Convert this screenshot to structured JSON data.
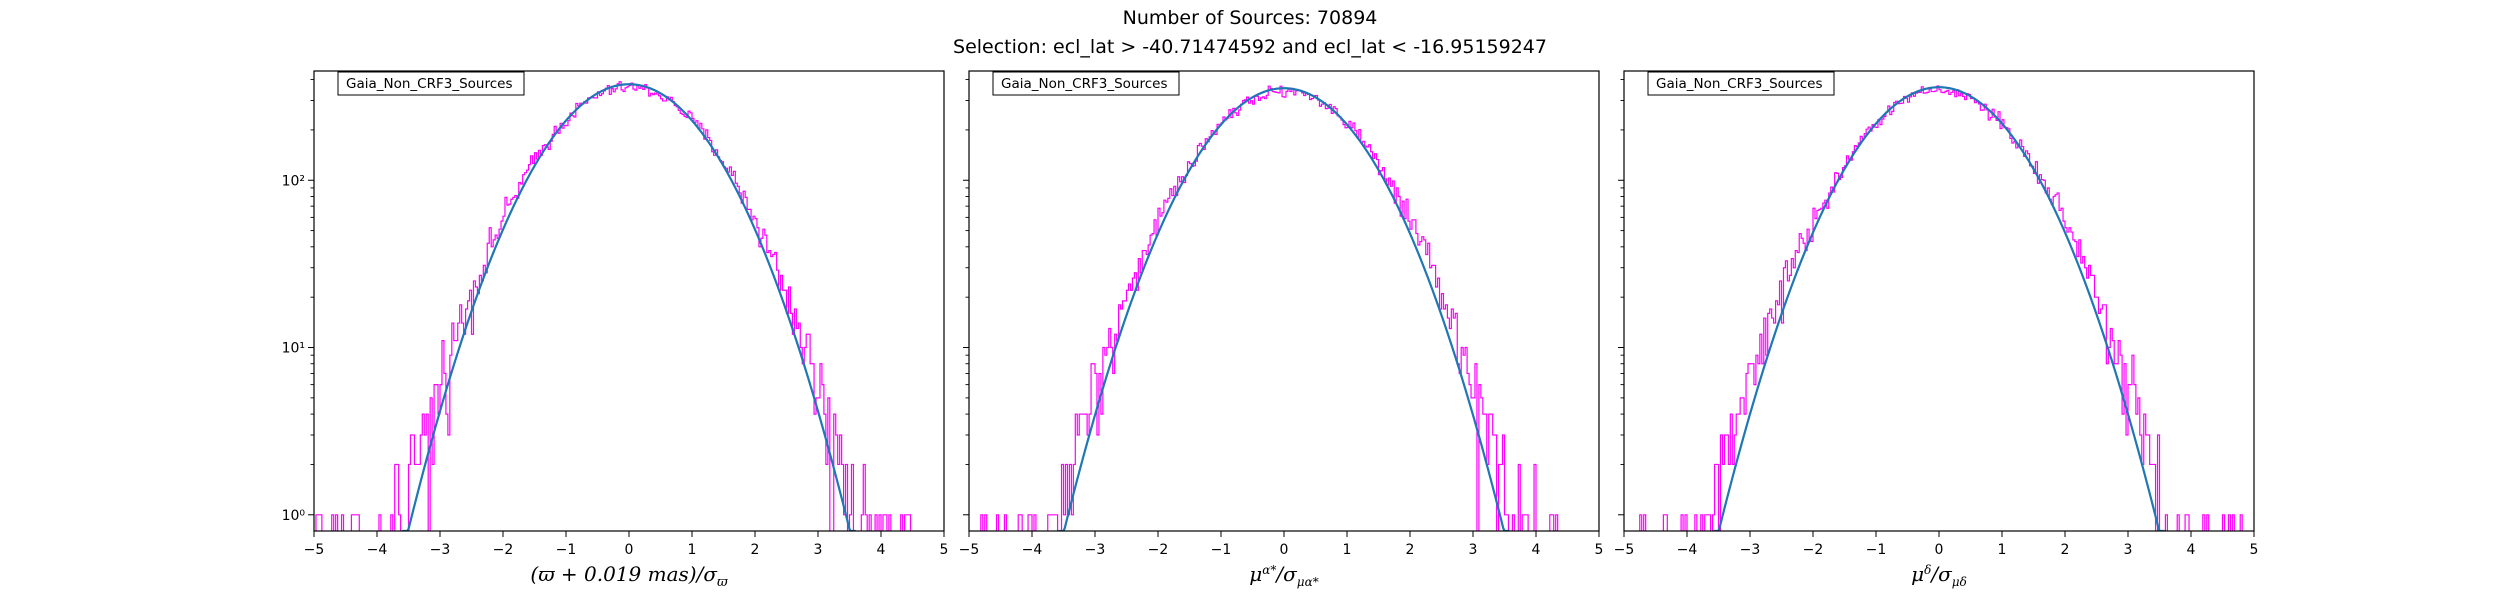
{
  "figure": {
    "title_line1": "Number of Sources: 70894",
    "title_line2": "Selection: ecl_lat > -40.71474592 and ecl_lat < -16.95159247"
  },
  "colors": {
    "histogram": "#ff00ff",
    "fit": "#1f77b4"
  },
  "chart_data": [
    {
      "type": "line",
      "legend": "Gaia_Non_CRF3_Sources",
      "xlabel_parts": [
        "(ϖ + 0.019 mas)/σ",
        "ϖ"
      ],
      "ylabel": "",
      "xlim": [
        -5,
        5
      ],
      "ylim": [
        0.8,
        450
      ],
      "yscale": "log",
      "x_ticks": [
        -5,
        -4,
        -3,
        -2,
        -1,
        0,
        1,
        2,
        3,
        4,
        5
      ],
      "y_ticks": [
        1,
        10,
        100
      ],
      "y_tick_labels": [
        "10⁰",
        "10¹",
        "10²"
      ],
      "grid": false,
      "series": [
        {
          "kind": "histogram-step",
          "x_range": [
            -5,
            4.5
          ],
          "peak": 360,
          "sigma": 1.05,
          "min_count": 1
        },
        {
          "kind": "gaussian-fit",
          "amplitude": 375,
          "mean": 0,
          "sigma": 1.0
        }
      ]
    },
    {
      "type": "line",
      "legend": "Gaia_Non_CRF3_Sources",
      "xlabel_parts": [
        "μ",
        "α*",
        "/σ",
        "μα*"
      ],
      "ylabel": "",
      "xlim": [
        -5,
        5
      ],
      "ylim": [
        0.8,
        450
      ],
      "yscale": "log",
      "x_ticks": [
        -5,
        -4,
        -3,
        -2,
        -1,
        0,
        1,
        2,
        3,
        4,
        5
      ],
      "y_ticks": [
        1,
        10,
        100
      ],
      "y_tick_labels": [
        "",
        "",
        ""
      ],
      "grid": false,
      "series": [
        {
          "kind": "histogram-step",
          "x_range": [
            -4.8,
            4.5
          ],
          "peak": 345,
          "sigma": 1.05,
          "min_count": 1
        },
        {
          "kind": "gaussian-fit",
          "amplitude": 355,
          "mean": 0,
          "sigma": 1.0
        }
      ]
    },
    {
      "type": "line",
      "legend": "Gaia_Non_CRF3_Sources",
      "xlabel_parts": [
        "μ",
        "δ",
        "/σ",
        "μδ"
      ],
      "ylabel": "",
      "xlim": [
        -5,
        5
      ],
      "ylim": [
        0.8,
        450
      ],
      "yscale": "log",
      "x_ticks": [
        -5,
        -4,
        -3,
        -2,
        -1,
        0,
        1,
        2,
        3,
        4,
        5
      ],
      "y_ticks": [
        1,
        10,
        100
      ],
      "y_tick_labels": [
        "",
        "",
        ""
      ],
      "grid": false,
      "series": [
        {
          "kind": "histogram-step",
          "x_range": [
            -4.9,
            4.8
          ],
          "peak": 345,
          "sigma": 1.05,
          "min_count": 1
        },
        {
          "kind": "gaussian-fit",
          "amplitude": 360,
          "mean": 0,
          "sigma": 1.0
        }
      ]
    }
  ]
}
